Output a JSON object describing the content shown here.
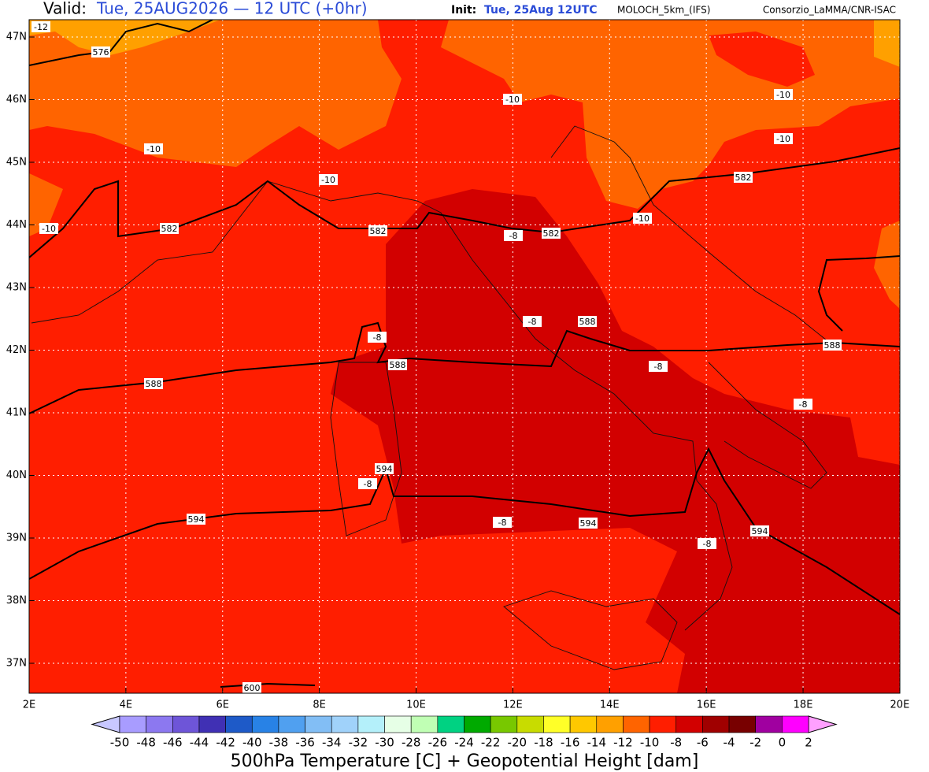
{
  "header": {
    "valid_label": "Valid:",
    "valid_value": "Tue, 25AUG2026 — 12 UTC (+0hr)",
    "init_label": "Init:",
    "init_value": "Tue, 25Aug 12UTC",
    "model": "MOLOCH_5km_(IFS)",
    "credit": "Consorzio_LaMMA/CNR-ISAC"
  },
  "map": {
    "lat_ticks": [
      {
        "value": 47,
        "label": "47N"
      },
      {
        "value": 46,
        "label": "46N"
      },
      {
        "value": 45,
        "label": "45N"
      },
      {
        "value": 44,
        "label": "44N"
      },
      {
        "value": 43,
        "label": "43N"
      },
      {
        "value": 42,
        "label": "42N"
      },
      {
        "value": 41,
        "label": "41N"
      },
      {
        "value": 40,
        "label": "40N"
      },
      {
        "value": 39,
        "label": "39N"
      },
      {
        "value": 38,
        "label": "38N"
      },
      {
        "value": 37,
        "label": "37N"
      }
    ],
    "lon_ticks": [
      {
        "value": 2,
        "label": "2E"
      },
      {
        "value": 4,
        "label": "4E"
      },
      {
        "value": 6,
        "label": "6E"
      },
      {
        "value": 8,
        "label": "8E"
      },
      {
        "value": 10,
        "label": "10E"
      },
      {
        "value": 12,
        "label": "12E"
      },
      {
        "value": 14,
        "label": "14E"
      },
      {
        "value": 16,
        "label": "16E"
      },
      {
        "value": 18,
        "label": "18E"
      },
      {
        "value": 20,
        "label": "20E"
      }
    ],
    "temperature_labels": [
      -12,
      -10,
      -10,
      -10,
      -10,
      -10,
      -10,
      -10,
      -8,
      -8,
      -8,
      -8,
      -8,
      -8,
      -8,
      -8
    ],
    "height_labels": [
      576,
      582,
      582,
      582,
      582,
      588,
      588,
      588,
      588,
      594,
      594,
      594,
      594,
      600
    ]
  },
  "colorbar": {
    "ticks": [
      -50,
      -48,
      -46,
      -44,
      -42,
      -40,
      -38,
      -36,
      -34,
      -32,
      -30,
      -28,
      -26,
      -24,
      -22,
      -20,
      -18,
      -16,
      -14,
      -12,
      -10,
      -8,
      -6,
      -4,
      -2,
      0,
      2
    ],
    "colors": [
      "#a89cff",
      "#8c78f0",
      "#6e55d8",
      "#4030b4",
      "#1e5ac8",
      "#2882e6",
      "#50a0f0",
      "#82bef5",
      "#a0d2fa",
      "#b4f0fa",
      "#e6ffe6",
      "#c0ffb4",
      "#00d282",
      "#00aa00",
      "#78c800",
      "#c8dc00",
      "#ffff28",
      "#ffc800",
      "#ffa000",
      "#ff6400",
      "#ff1e00",
      "#d20000",
      "#a00000",
      "#780000",
      "#a000a0",
      "#ff00ff"
    ],
    "under_color": "#c8c8ff",
    "over_color": "#ffa0ff",
    "title": "500hPa Temperature [C] + Geopotential Height [dam]"
  }
}
